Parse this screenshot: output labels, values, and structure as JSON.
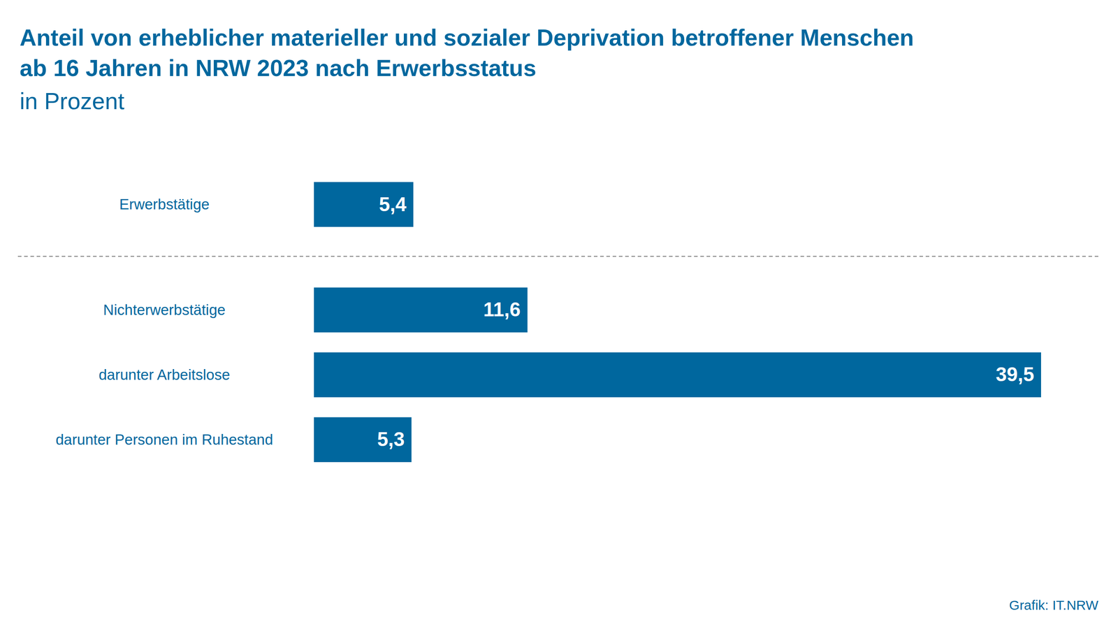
{
  "chart_data": {
    "type": "bar",
    "title": "Anteil von erheblicher materieller und sozialer Deprivation betroffener Menschen\nab 16 Jahren in NRW 2023 nach Erwerbsstatus",
    "subtitle": "in Prozent",
    "caption": "Grafik: IT.NRW",
    "orientation": "horizontal",
    "categories": [
      "Erwerbstätige",
      "Nichterwerbstätige",
      "darunter Arbeitslose",
      "darunter Personen im Ruhestand"
    ],
    "values": [
      5.4,
      11.6,
      39.5,
      5.3
    ],
    "value_labels": [
      "5,4",
      "11,6",
      "39,5",
      "5,3"
    ],
    "color": "#00679e",
    "data_labels": true,
    "tick_labels": "y"
  }
}
